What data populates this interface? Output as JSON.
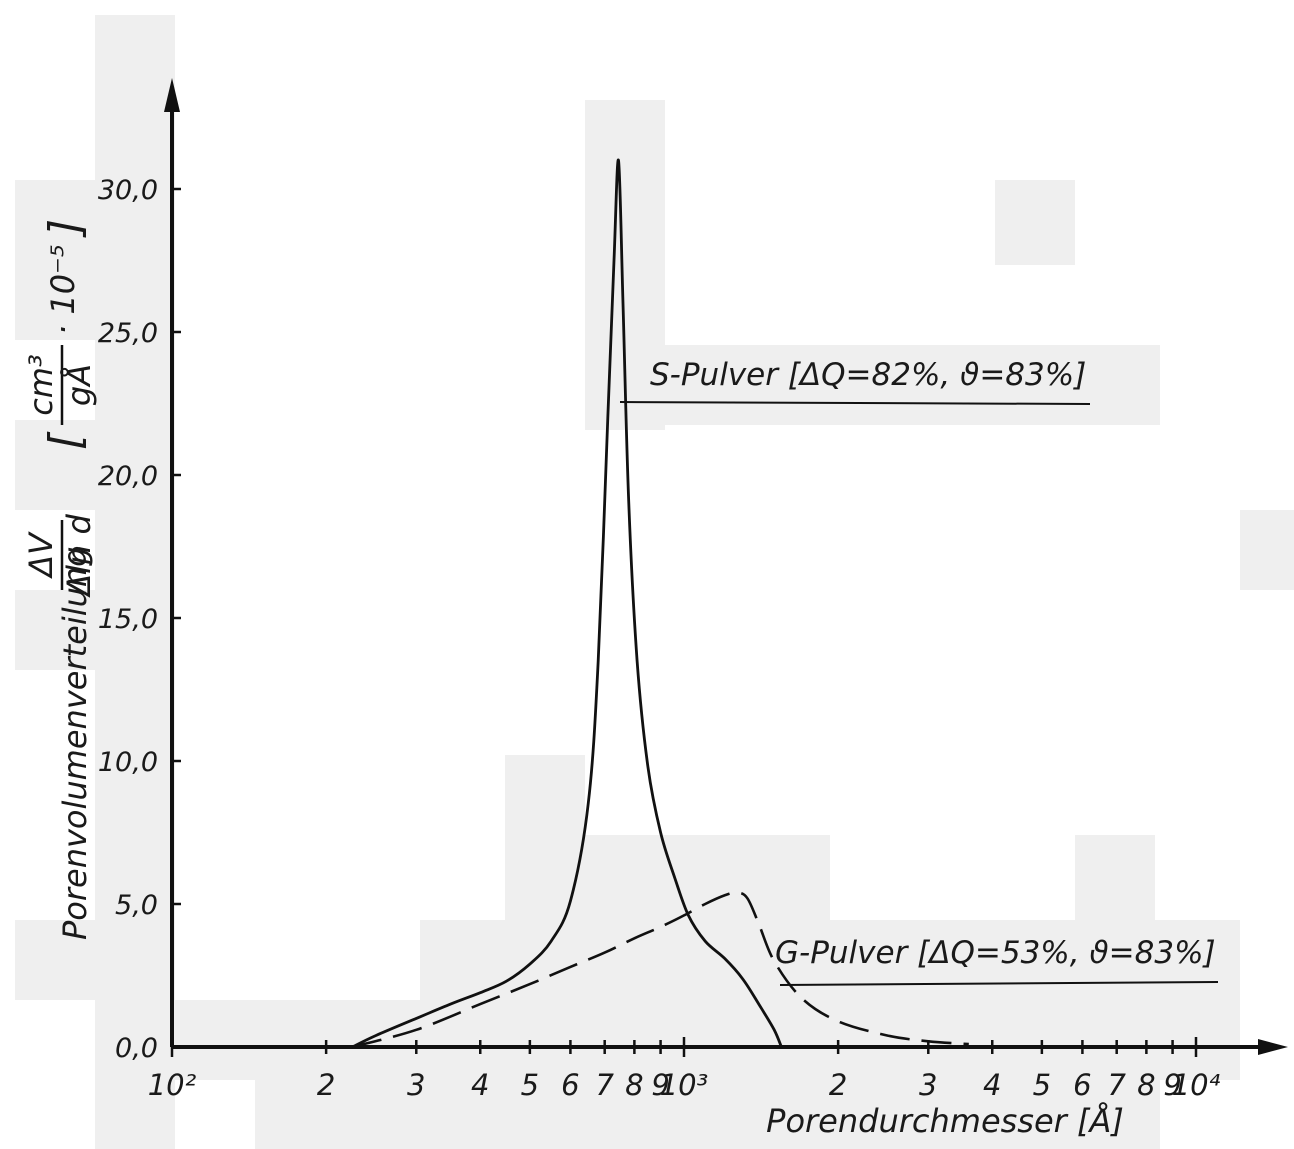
{
  "chart_data": {
    "type": "line",
    "x_scale": "log",
    "xlim": [
      100,
      12000
    ],
    "ylim": [
      0,
      33
    ],
    "grid": false,
    "xlabel": "Porendurchmesser [Å]",
    "ylabel": {
      "text": "Porenvolumenverteilung",
      "fraction_num": "ΔV",
      "fraction_den": "Δln d",
      "unit_num": "cm³",
      "unit_den": "gÅ",
      "unit_factor": "· 10⁻⁵"
    },
    "y_ticks": [
      {
        "value": 0,
        "label": "0,0"
      },
      {
        "value": 5,
        "label": "5,0"
      },
      {
        "value": 10,
        "label": "10,0"
      },
      {
        "value": 15,
        "label": "15,0"
      },
      {
        "value": 20,
        "label": "20,0"
      },
      {
        "value": 25,
        "label": "25,0"
      },
      {
        "value": 30,
        "label": "30,0"
      }
    ],
    "x_ticks": [
      {
        "value": 100,
        "label": "10²"
      },
      {
        "value": 200,
        "label": "2"
      },
      {
        "value": 300,
        "label": "3"
      },
      {
        "value": 400,
        "label": "4"
      },
      {
        "value": 500,
        "label": "5"
      },
      {
        "value": 600,
        "label": "6"
      },
      {
        "value": 700,
        "label": "7"
      },
      {
        "value": 800,
        "label": "8"
      },
      {
        "value": 900,
        "label": "9"
      },
      {
        "value": 1000,
        "label": "10³"
      },
      {
        "value": 2000,
        "label": "2"
      },
      {
        "value": 3000,
        "label": "3"
      },
      {
        "value": 4000,
        "label": "4"
      },
      {
        "value": 5000,
        "label": "5"
      },
      {
        "value": 6000,
        "label": "6"
      },
      {
        "value": 7000,
        "label": "7"
      },
      {
        "value": 8000,
        "label": "8"
      },
      {
        "value": 9000,
        "label": "9"
      },
      {
        "value": 10000,
        "label": "10⁴"
      }
    ],
    "series": [
      {
        "name": "S-Pulver",
        "label": "S-Pulver [ΔQ=82%, ϑ=83%]",
        "style": "solid",
        "x": [
          225,
          250,
          300,
          350,
          400,
          450,
          500,
          550,
          600,
          650,
          680,
          710,
          730,
          745,
          760,
          780,
          810,
          850,
          900,
          960,
          1020,
          1100,
          1200,
          1300,
          1400,
          1500,
          1550
        ],
        "y": [
          0,
          0.4,
          1.0,
          1.5,
          1.9,
          2.3,
          2.9,
          3.7,
          5.1,
          8.5,
          13.5,
          22.0,
          27.5,
          31.0,
          26.0,
          19.0,
          13.5,
          9.8,
          7.5,
          5.9,
          4.6,
          3.7,
          3.1,
          2.4,
          1.5,
          0.6,
          0
        ]
      },
      {
        "name": "G-Pulver",
        "label": "G-Pulver [ΔQ=53%, ϑ=83%]",
        "style": "dashed",
        "x": [
          225,
          300,
          400,
          500,
          600,
          700,
          800,
          900,
          1000,
          1100,
          1200,
          1270,
          1330,
          1400,
          1500,
          1700,
          2000,
          2500,
          3000,
          3600
        ],
        "y": [
          0,
          0.6,
          1.5,
          2.2,
          2.8,
          3.3,
          3.8,
          4.2,
          4.6,
          5.0,
          5.3,
          5.4,
          5.2,
          4.3,
          3.0,
          1.7,
          0.9,
          0.4,
          0.2,
          0.1
        ]
      }
    ]
  }
}
